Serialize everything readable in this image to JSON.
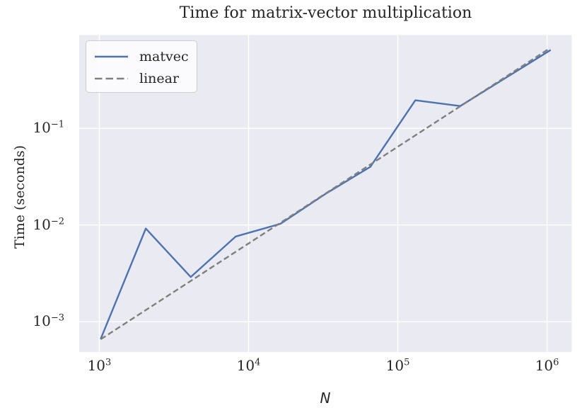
{
  "chart_data": {
    "type": "line",
    "title": "Time for matrix-vector multiplication",
    "xlabel": "N",
    "ylabel": "Time (seconds)",
    "x_scale": "log",
    "y_scale": "log",
    "xlim": [
      733,
      1464000
    ],
    "ylim": [
      0.000486,
      0.921
    ],
    "grid": true,
    "legend_position": "upper left",
    "x_ticks": [
      {
        "value": 1000,
        "base": "10",
        "exp": "3"
      },
      {
        "value": 10000,
        "base": "10",
        "exp": "4"
      },
      {
        "value": 100000,
        "base": "10",
        "exp": "5"
      },
      {
        "value": 1000000,
        "base": "10",
        "exp": "6"
      }
    ],
    "y_ticks": [
      {
        "value": 0.1,
        "base": "10",
        "exp": "−1"
      },
      {
        "value": 0.01,
        "base": "10",
        "exp": "−2"
      },
      {
        "value": 0.001,
        "base": "10",
        "exp": "−3"
      }
    ],
    "series": [
      {
        "name": "matvec",
        "color": "#4c72b0",
        "line_style": "solid",
        "x": [
          1024,
          2048,
          4096,
          8192,
          16384,
          32768,
          65536,
          131072,
          262144,
          524288,
          1048576
        ],
        "y": [
          0.00067,
          0.0092,
          0.0029,
          0.0076,
          0.0103,
          0.021,
          0.04,
          0.195,
          0.17,
          0.33,
          0.64
        ]
      },
      {
        "name": "linear",
        "color": "#7f7f7f",
        "line_style": "dashed",
        "x": [
          1024,
          1048576
        ],
        "y": [
          0.00066,
          0.676
        ]
      }
    ],
    "colors": {
      "figure_background": "#ffffff",
      "axes_background": "#eaeaf2",
      "grid": "#ffffff",
      "text": "#262626",
      "legend_background": "rgba(255,255,255,0.8)",
      "legend_border": "#cccccc"
    }
  }
}
